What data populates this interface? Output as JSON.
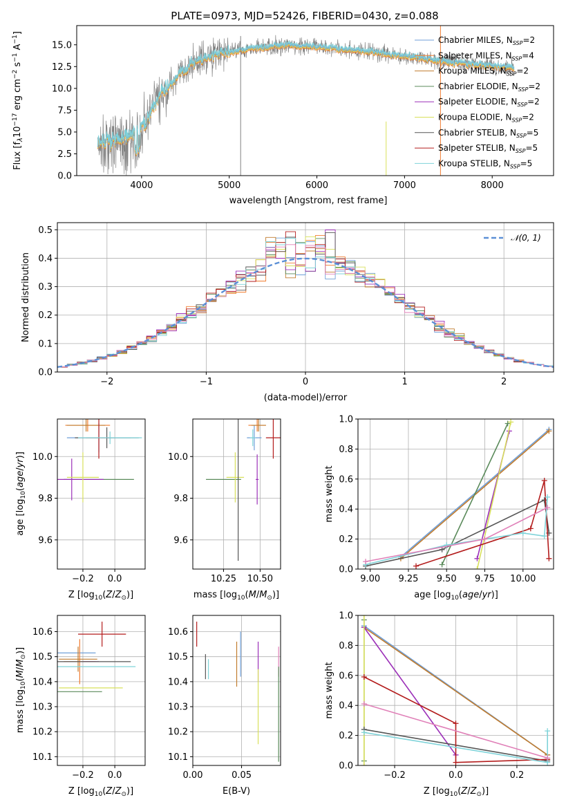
{
  "figure": {
    "title": "PLATE=0973, MJD=52426, FIBERID=0430, z=0.088"
  },
  "colors": {
    "Chabrier MILES": "#6f9fd8",
    "Salpeter MILES": "#f07b2e",
    "Kroupa MILES": "#c17c2e",
    "Chabrier ELODIE": "#5a8a5a",
    "Salpeter ELODIE": "#9b2fb8",
    "Kroupa ELODIE": "#d8e05a",
    "Chabrier STELIB": "#555555",
    "Salpeter STELIB": "#b31b1b",
    "Kroupa STELIB": "#7fd3d9",
    "pink": "#e080b8",
    "data": "#808080",
    "normal": "#5b8fd6"
  },
  "legend_labels": [
    {
      "pre": "Chabrier MILES, N",
      "sub": "SSP",
      "post": "=2",
      "key": "Chabrier MILES"
    },
    {
      "pre": "Salpeter MILES, N",
      "sub": "SSP",
      "post": "=4",
      "key": "Salpeter MILES"
    },
    {
      "pre": "Kroupa MILES, N",
      "sub": "SSP",
      "post": "=2",
      "key": "Kroupa MILES"
    },
    {
      "pre": "Chabrier ELODIE, N",
      "sub": "SSP",
      "post": "=2",
      "key": "Chabrier ELODIE"
    },
    {
      "pre": "Salpeter ELODIE, N",
      "sub": "SSP",
      "post": "=2",
      "key": "Salpeter ELODIE"
    },
    {
      "pre": "Kroupa ELODIE, N",
      "sub": "SSP",
      "post": "=2",
      "key": "Kroupa ELODIE"
    },
    {
      "pre": "Chabrier STELIB, N",
      "sub": "SSP",
      "post": "=5",
      "key": "Chabrier STELIB"
    },
    {
      "pre": "Salpeter STELIB, N",
      "sub": "SSP",
      "post": "=5",
      "key": "Salpeter STELIB"
    },
    {
      "pre": "Kroupa STELIB, N",
      "sub": "SSP",
      "post": "=5",
      "key": "Kroupa STELIB"
    }
  ],
  "chart_data": [
    {
      "id": "spectrum",
      "type": "line",
      "xlabel": "wavelength [Angstrom, rest frame]",
      "ylabel": "Flux [f_λ 10^-17 erg cm^-2 s^-1 A^-1]",
      "ylabel_parts": {
        "a": "Flux [f",
        "b": "λ",
        "c": "10",
        "d": "−17",
        "e": " erg cm",
        "f": "−2",
        "g": " s",
        "h": "−1",
        "i": " A",
        "j": "−1",
        "k": "]"
      },
      "xlim": [
        3260,
        8700
      ],
      "ylim": [
        0,
        17.2
      ],
      "xticks": [
        4000,
        5000,
        6000,
        7000,
        8000
      ],
      "xtick_labels": [
        "4000",
        "5000",
        "6000",
        "7000",
        "8000"
      ],
      "yticks": [
        0,
        2.5,
        5,
        7.5,
        10,
        12.5,
        15
      ],
      "ytick_labels": [
        "0.0",
        "2.5",
        "5.0",
        "7.5",
        "10.0",
        "12.5",
        "15.0"
      ],
      "continuum": [
        [
          3500,
          3.6
        ],
        [
          3700,
          4.2
        ],
        [
          3900,
          4.6
        ],
        [
          4000,
          5.4
        ],
        [
          4200,
          9.0
        ],
        [
          4400,
          11.3
        ],
        [
          4600,
          13.0
        ],
        [
          4800,
          13.8
        ],
        [
          5000,
          14.2
        ],
        [
          5300,
          14.6
        ],
        [
          5600,
          14.9
        ],
        [
          6000,
          14.8
        ],
        [
          6500,
          14.3
        ],
        [
          7000,
          13.7
        ],
        [
          7500,
          13.0
        ],
        [
          8000,
          12.6
        ],
        [
          8250,
          12.4
        ]
      ],
      "spikes": [
        [
          5130,
          0,
          16.0
        ],
        [
          6790,
          0,
          6.2
        ],
        [
          7410,
          0,
          17.2
        ]
      ]
    },
    {
      "id": "residuals",
      "type": "histogram",
      "xlabel": "(data-model)/error",
      "ylabel": "Normed distribution",
      "xlim": [
        -2.5,
        2.5
      ],
      "ylim": [
        0,
        0.525
      ],
      "xticks": [
        -2,
        -1,
        0,
        1,
        2
      ],
      "xtick_labels": [
        "−2",
        "−1",
        "0",
        "1",
        "2"
      ],
      "yticks": [
        0,
        0.1,
        0.2,
        0.3,
        0.4,
        0.5
      ],
      "ytick_labels": [
        "0.0",
        "0.1",
        "0.2",
        "0.3",
        "0.4",
        "0.5"
      ],
      "legend": "𝒩(0, 1)",
      "bin_width": 0.1
    },
    {
      "id": "age-vs-Z",
      "type": "errorbar",
      "xlabel": "Z [log10(Z/Z⊙)]",
      "ylabel": "age [log10(age/yr)]",
      "xlim": [
        -0.36,
        0.19
      ],
      "ylim": [
        9.46,
        10.18
      ],
      "xticks": [
        -0.2,
        0.0
      ],
      "xtick_labels": [
        "−0.2",
        "0.0"
      ],
      "yticks": [
        9.6,
        9.8,
        10.0
      ],
      "ytick_labels": [
        "9.6",
        "9.8",
        "10.0"
      ],
      "points": [
        {
          "c": "Chabrier MILES",
          "x": -0.1,
          "y": 10.09,
          "ex": 0.2,
          "ey": 0.07
        },
        {
          "c": "Salpeter MILES",
          "x": -0.17,
          "y": 10.15,
          "ex": 0.14,
          "ey": 0.03
        },
        {
          "c": "Kroupa MILES",
          "x": -0.18,
          "y": 10.15,
          "ex": 0.12,
          "ey": 0.03
        },
        {
          "c": "Chabrier ELODIE",
          "x": -0.1,
          "y": 9.89,
          "ex": 0.22,
          "ey": 0.0
        },
        {
          "c": "Salpeter ELODIE",
          "x": -0.27,
          "y": 9.89,
          "ex": 0.2,
          "ey": 0.1
        },
        {
          "c": "Kroupa ELODIE",
          "x": -0.2,
          "y": 9.9,
          "ex": 0.1,
          "ey": 0.12
        },
        {
          "c": "Chabrier STELIB",
          "x": -0.05,
          "y": 10.09,
          "ex": 0.2,
          "ey": 0.05
        },
        {
          "c": "Salpeter STELIB",
          "x": -0.1,
          "y": 10.09,
          "ex": 0.08,
          "ey": 0.1
        },
        {
          "c": "Kroupa STELIB",
          "x": -0.03,
          "y": 10.09,
          "ex": 0.2,
          "ey": 0.03
        }
      ]
    },
    {
      "id": "age-vs-mass",
      "type": "errorbar",
      "xlabel": "mass [log10(M/M⊙)]",
      "ylabel": "",
      "xlim": [
        10.04,
        10.64
      ],
      "ylim": [
        9.46,
        10.18
      ],
      "xticks": [
        10.25,
        10.5
      ],
      "xtick_labels": [
        "10.25",
        "10.50"
      ],
      "yticks": [
        9.6,
        9.8,
        10.0
      ],
      "ytick_labels": [
        "9.6",
        "9.8",
        "10.0"
      ],
      "points": [
        {
          "c": "Chabrier MILES",
          "x": 10.46,
          "y": 10.09,
          "ex": 0.05,
          "ey": 0.06
        },
        {
          "c": "Salpeter MILES",
          "x": 10.48,
          "y": 10.15,
          "ex": 0.06,
          "ey": 0.03
        },
        {
          "c": "Kroupa MILES",
          "x": 10.49,
          "y": 10.15,
          "ex": 0.05,
          "ey": 0.03
        },
        {
          "c": "Chabrier ELODIE",
          "x": 10.25,
          "y": 9.89,
          "ex": 0.12,
          "ey": 0.0
        },
        {
          "c": "Salpeter ELODIE",
          "x": 10.48,
          "y": 9.89,
          "ex": 0.01,
          "ey": 0.12
        },
        {
          "c": "Kroupa ELODIE",
          "x": 10.33,
          "y": 9.9,
          "ex": 0.06,
          "ey": 0.12
        },
        {
          "c": "Chabrier STELIB",
          "x": 10.35,
          "y": 9.89,
          "ex": 0.0,
          "ey": 0.39
        },
        {
          "c": "Salpeter STELIB",
          "x": 10.59,
          "y": 10.09,
          "ex": 0.05,
          "ey": 0.1
        },
        {
          "c": "Kroupa STELIB",
          "x": 10.45,
          "y": 10.09,
          "ex": 0.02,
          "ey": 0.04
        }
      ]
    },
    {
      "id": "weight-vs-age",
      "type": "line",
      "xlabel": "age [log10(age/yr)]",
      "ylabel": "mass weight",
      "xlim": [
        8.92,
        10.2
      ],
      "ylim": [
        0,
        1
      ],
      "xticks": [
        9.0,
        9.25,
        9.5,
        9.75,
        10.0
      ],
      "xtick_labels": [
        "9.00",
        "9.25",
        "9.50",
        "9.75",
        "10.00"
      ],
      "yticks": [
        0,
        0.2,
        0.4,
        0.6,
        0.8,
        1.0
      ],
      "ytick_labels": [
        "0.0",
        "0.2",
        "0.4",
        "0.6",
        "0.8",
        "1.0"
      ],
      "series": [
        {
          "c": "Chabrier MILES",
          "pts": [
            [
              9.2,
              0.08
            ],
            [
              10.17,
              0.93
            ]
          ]
        },
        {
          "c": "Kroupa MILES",
          "pts": [
            [
              9.2,
              0.07
            ],
            [
              10.17,
              0.92
            ]
          ]
        },
        {
          "c": "Chabrier ELODIE",
          "pts": [
            [
              9.47,
              0.03
            ],
            [
              9.9,
              0.97
            ]
          ]
        },
        {
          "c": "Salpeter ELODIE",
          "pts": [
            [
              9.7,
              0.07
            ],
            [
              9.91,
              0.92
            ]
          ]
        },
        {
          "c": "Kroupa ELODIE",
          "pts": [
            [
              9.7,
              0.0
            ],
            [
              9.92,
              0.98
            ]
          ]
        },
        {
          "c": "Chabrier STELIB",
          "pts": [
            [
              8.97,
              0.02
            ],
            [
              9.47,
              0.13
            ],
            [
              10.14,
              0.46
            ],
            [
              10.17,
              0.24
            ]
          ]
        },
        {
          "c": "Salpeter STELIB",
          "pts": [
            [
              9.3,
              0.02
            ],
            [
              10.05,
              0.27
            ],
            [
              10.14,
              0.59
            ],
            [
              10.17,
              0.07
            ]
          ]
        },
        {
          "c": "Kroupa STELIB",
          "pts": [
            [
              8.97,
              0.03
            ],
            [
              9.5,
              0.16
            ],
            [
              10.0,
              0.24
            ],
            [
              10.14,
              0.22
            ],
            [
              10.16,
              0.48
            ]
          ]
        },
        {
          "c": "pink",
          "pts": [
            [
              8.97,
              0.05
            ],
            [
              9.75,
              0.2
            ],
            [
              10.16,
              0.41
            ]
          ]
        }
      ]
    },
    {
      "id": "mass-vs-Z",
      "type": "errorbar",
      "xlabel": "Z [log10(Z/Z⊙)]",
      "ylabel": "mass [log10(M/M⊙)]",
      "xlim": [
        -0.36,
        0.19
      ],
      "ylim": [
        10.065,
        10.665
      ],
      "xticks": [
        -0.2,
        0.0
      ],
      "xtick_labels": [
        "−0.2",
        "0.0"
      ],
      "yticks": [
        10.1,
        10.2,
        10.3,
        10.4,
        10.5,
        10.6
      ],
      "ytick_labels": [
        "10.1",
        "10.2",
        "10.3",
        "10.4",
        "10.5",
        "10.6"
      ],
      "points": [
        {
          "c": "Chabrier MILES",
          "x": -0.24,
          "y": 10.515,
          "ex": 0.12,
          "ey": 0.0
        },
        {
          "c": "Salpeter MILES",
          "x": -0.22,
          "y": 10.48,
          "ex": 0.1,
          "ey": 0.09
        },
        {
          "c": "Kroupa MILES",
          "x": -0.23,
          "y": 10.49,
          "ex": 0.12,
          "ey": 0.05
        },
        {
          "c": "Chabrier ELODIE",
          "x": -0.22,
          "y": 10.36,
          "ex": 0.14,
          "ey": 0.0
        },
        {
          "c": "Salpeter ELODIE",
          "x": -0.15,
          "y": 10.48,
          "ex": 0.05,
          "ey": 0.0
        },
        {
          "c": "Kroupa ELODIE",
          "x": -0.15,
          "y": 10.375,
          "ex": 0.2,
          "ey": 0.0
        },
        {
          "c": "Chabrier STELIB",
          "x": -0.15,
          "y": 10.48,
          "ex": 0.25,
          "ey": 0.0
        },
        {
          "c": "Salpeter STELIB",
          "x": -0.08,
          "y": 10.59,
          "ex": 0.15,
          "ey": 0.05
        },
        {
          "c": "Kroupa STELIB",
          "x": -0.12,
          "y": 10.46,
          "ex": 0.25,
          "ey": 0.0
        }
      ]
    },
    {
      "id": "mass-vs-EBV",
      "type": "errorbar",
      "xlabel": "E(B-V)",
      "ylabel": "",
      "xlim": [
        0.0,
        0.09
      ],
      "ylim": [
        10.065,
        10.665
      ],
      "xticks": [
        0.0,
        0.05
      ],
      "xtick_labels": [
        "0.00",
        "0.05"
      ],
      "yticks": [
        10.1,
        10.2,
        10.3,
        10.4,
        10.5,
        10.6
      ],
      "ytick_labels": [
        "10.1",
        "10.2",
        "10.3",
        "10.4",
        "10.5",
        "10.6"
      ],
      "points": [
        {
          "c": "Salpeter STELIB",
          "x": 0.004,
          "y": 10.59,
          "ex": 0.0,
          "ey": 0.05
        },
        {
          "c": "Chabrier STELIB",
          "x": 0.013,
          "y": 10.46,
          "ex": 0.0,
          "ey": 0.05
        },
        {
          "c": "Kroupa STELIB",
          "x": 0.016,
          "y": 10.45,
          "ex": 0.0,
          "ey": 0.04
        },
        {
          "c": "Kroupa MILES",
          "x": 0.045,
          "y": 10.47,
          "ex": 0.0,
          "ey": 0.09
        },
        {
          "c": "Chabrier MILES",
          "x": 0.049,
          "y": 10.51,
          "ex": 0.0,
          "ey": 0.09
        },
        {
          "c": "Salpeter ELODIE",
          "x": 0.067,
          "y": 10.48,
          "ex": 0.0,
          "ey": 0.08
        },
        {
          "c": "Kroupa ELODIE",
          "x": 0.067,
          "y": 10.3,
          "ex": 0.0,
          "ey": 0.15
        },
        {
          "c": "pink",
          "x": 0.088,
          "y": 10.48,
          "ex": 0.0,
          "ey": 0.06
        },
        {
          "c": "Chabrier ELODIE",
          "x": 0.088,
          "y": 10.27,
          "ex": 0.0,
          "ey": 0.19
        }
      ]
    },
    {
      "id": "weight-vs-Z",
      "type": "line",
      "xlabel": "Z [log10(Z/Z⊙)]",
      "ylabel": "mass weight",
      "xlim": [
        -0.32,
        0.32
      ],
      "ylim": [
        0,
        1
      ],
      "xticks": [
        -0.2,
        0.0,
        0.2
      ],
      "xtick_labels": [
        "−0.2",
        "0.0",
        "0.2"
      ],
      "yticks": [
        0,
        0.2,
        0.4,
        0.6,
        0.8,
        1.0
      ],
      "ytick_labels": [
        "0.0",
        "0.2",
        "0.4",
        "0.6",
        "0.8",
        "1.0"
      ],
      "series": [
        {
          "c": "Chabrier MILES",
          "pts": [
            [
              -0.3,
              0.93
            ],
            [
              0.3,
              0.07
            ]
          ]
        },
        {
          "c": "Kroupa MILES",
          "pts": [
            [
              -0.3,
              0.92
            ],
            [
              0.3,
              0.07
            ]
          ]
        },
        {
          "c": "Chabrier ELODIE",
          "pts": [
            [
              -0.3,
              0.97
            ],
            [
              -0.3,
              0.03
            ]
          ]
        },
        {
          "c": "Salpeter ELODIE",
          "pts": [
            [
              -0.3,
              0.92
            ],
            [
              0.0,
              0.07
            ]
          ]
        },
        {
          "c": "Kroupa ELODIE",
          "pts": [
            [
              -0.3,
              1.0
            ],
            [
              -0.3,
              0.0
            ]
          ]
        },
        {
          "c": "Chabrier STELIB",
          "pts": [
            [
              -0.3,
              0.24
            ],
            [
              0.3,
              0.03
            ]
          ]
        },
        {
          "c": "Salpeter STELIB",
          "pts": [
            [
              -0.3,
              0.59
            ],
            [
              0.0,
              0.28
            ],
            [
              0.0,
              0.02
            ],
            [
              0.3,
              0.04
            ]
          ]
        },
        {
          "c": "Kroupa STELIB",
          "pts": [
            [
              -0.3,
              0.22
            ],
            [
              0.3,
              0.02
            ],
            [
              0.3,
              0.23
            ]
          ]
        },
        {
          "c": "pink",
          "pts": [
            [
              -0.3,
              0.41
            ],
            [
              0.3,
              0.05
            ]
          ]
        }
      ]
    }
  ]
}
